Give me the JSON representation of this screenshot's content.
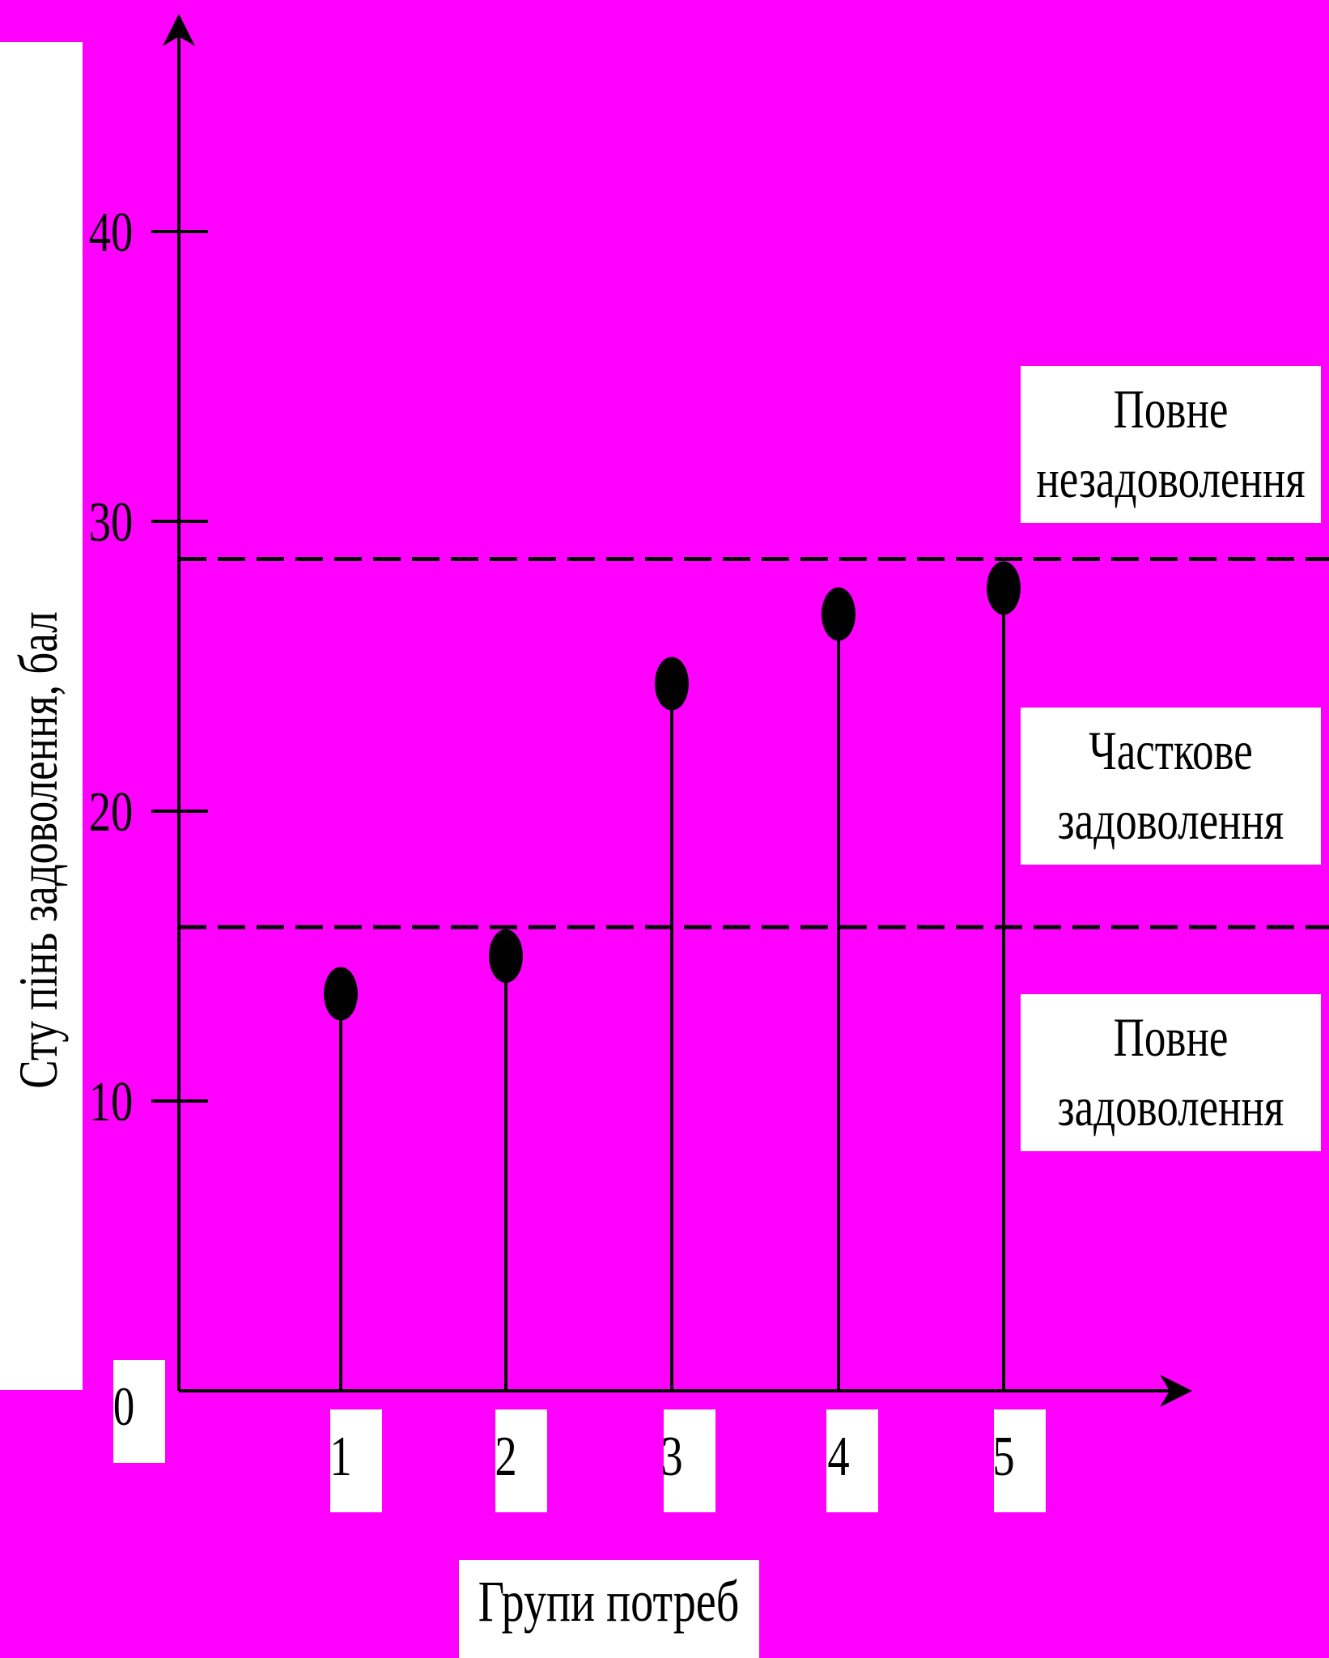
{
  "chart_data": {
    "type": "scatter",
    "style": "stem (lollipop) plot",
    "title": "",
    "xlabel": "Групи потреб",
    "ylabel": "Сту пінь задоволення, бал",
    "origin_label": "0",
    "categories": [
      "1",
      "2",
      "3",
      "4",
      "5"
    ],
    "values": [
      13.7,
      15.0,
      24.4,
      26.8,
      27.7
    ],
    "ylim": [
      0,
      47
    ],
    "yticks": [
      10,
      20,
      30,
      40
    ],
    "ytick_labels": [
      "10",
      "20",
      "30",
      "40"
    ],
    "thresholds": [
      {
        "value": 16.0,
        "style": "dashed"
      },
      {
        "value": 28.7,
        "style": "dashed"
      }
    ],
    "zones": [
      {
        "lines": [
          "Повне",
          "незадоволення"
        ]
      },
      {
        "lines": [
          "Часткове",
          "задоволення"
        ]
      },
      {
        "lines": [
          "Повне",
          "задоволення"
        ]
      }
    ],
    "grid": false,
    "legend": "none",
    "colors": {
      "background": "#ff00ff",
      "marks": "#000000",
      "label_boxes": "#ffffff"
    }
  }
}
